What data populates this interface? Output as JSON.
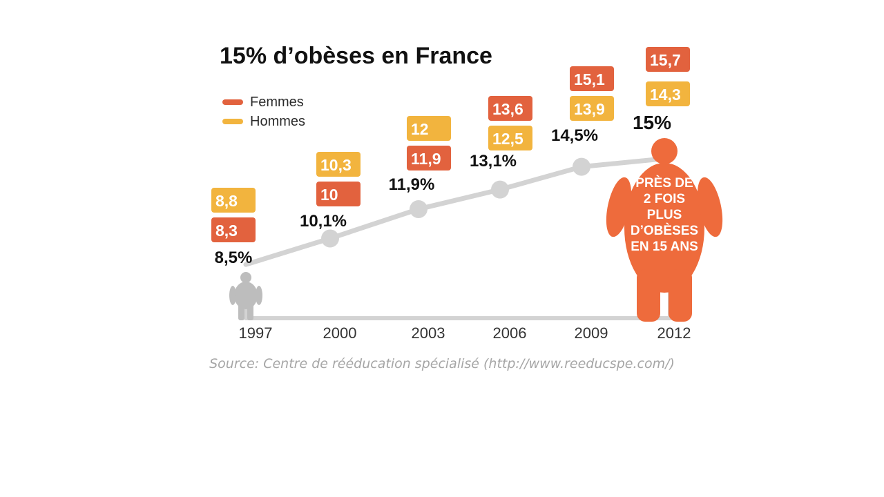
{
  "colors": {
    "femmes": "#E2623E",
    "hommes": "#F2B43E",
    "line": "#D3D3D3",
    "grey_figure": "#BDBDBD",
    "big_figure": "#EE6B3C"
  },
  "icons": {
    "small_figure": "small-person-icon",
    "big_figure": "obese-person-icon"
  },
  "source_text": "Source: Centre de rééducation spécialisé (http://www.reeducspe.com/)",
  "chart_data": {
    "type": "line",
    "title": "15% d’obèses en France",
    "legend": {
      "placement": "top-left",
      "entries": [
        "Femmes",
        "Hommes"
      ]
    },
    "x": [
      "1997",
      "2000",
      "2003",
      "2006",
      "2009",
      "2012"
    ],
    "series": [
      {
        "name": "Femmes",
        "values": [
          8.3,
          10,
          11.9,
          13.6,
          15.1,
          15.7
        ],
        "labels": [
          "8,3",
          "10",
          "11,9",
          "13,6",
          "15,1",
          "15,7"
        ]
      },
      {
        "name": "Hommes",
        "values": [
          8.8,
          10.3,
          12,
          12.5,
          13.9,
          14.3
        ],
        "labels": [
          "8,8",
          "10,3",
          "12",
          "12,5",
          "13,9",
          "14,3"
        ]
      }
    ],
    "total": {
      "values": [
        8.5,
        10.1,
        11.9,
        13.1,
        14.5,
        15
      ],
      "labels": [
        "8,5%",
        "10,1%",
        "11,9%",
        "13,1%",
        "14,5%",
        "15%"
      ]
    },
    "annotation": [
      "PRÈS DE",
      "2 FOIS",
      "PLUS",
      "D’OBÈSES",
      "EN 15 ANS"
    ],
    "ylim": [
      8,
      15.5
    ],
    "grid": false
  }
}
